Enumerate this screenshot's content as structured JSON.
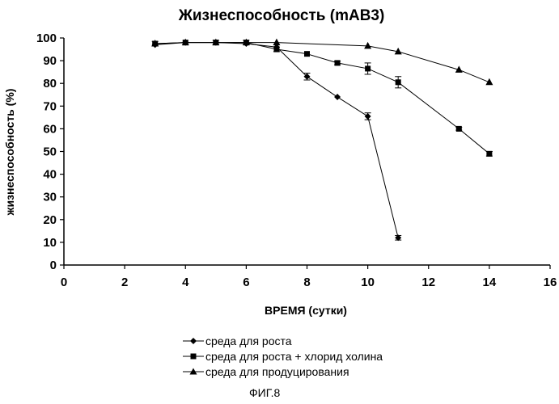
{
  "chart_data": {
    "type": "line",
    "title": "Жизнеспособность (mAB3)",
    "xlabel": "ВРЕМЯ (сутки)",
    "ylabel": "жизнеспособность (%)",
    "xlim": [
      0,
      16
    ],
    "ylim": [
      0,
      100
    ],
    "xticks": [
      "0",
      "2",
      "4",
      "6",
      "8",
      "10",
      "12",
      "14",
      "16"
    ],
    "yticks": [
      "0",
      "10",
      "20",
      "30",
      "40",
      "50",
      "60",
      "70",
      "80",
      "90",
      "100"
    ],
    "grid": false,
    "legend_position": "bottom",
    "series": [
      {
        "name": "среда для роста",
        "marker": "diamond",
        "points": [
          {
            "x": 3,
            "y": 97
          },
          {
            "x": 4,
            "y": 98
          },
          {
            "x": 5,
            "y": 98
          },
          {
            "x": 6,
            "y": 97.5
          },
          {
            "x": 7,
            "y": 96
          },
          {
            "x": 8,
            "y": 83
          },
          {
            "x": 9,
            "y": 74
          },
          {
            "x": 10,
            "y": 65.5
          },
          {
            "x": 11,
            "y": 12
          }
        ],
        "errors": [
          0,
          0,
          0,
          0,
          0,
          1.5,
          0,
          1.5,
          1
        ]
      },
      {
        "name": "среда для роста + хлорид холина",
        "marker": "square",
        "points": [
          {
            "x": 3,
            "y": 97.5
          },
          {
            "x": 4,
            "y": 98
          },
          {
            "x": 5,
            "y": 98
          },
          {
            "x": 6,
            "y": 98
          },
          {
            "x": 7,
            "y": 95
          },
          {
            "x": 8,
            "y": 93
          },
          {
            "x": 9,
            "y": 89
          },
          {
            "x": 10,
            "y": 86.5
          },
          {
            "x": 11,
            "y": 80.5
          },
          {
            "x": 13,
            "y": 60
          },
          {
            "x": 14,
            "y": 49
          }
        ],
        "errors": [
          1,
          0,
          1,
          1,
          1,
          0,
          0.8,
          2.5,
          2.5,
          0.6,
          1
        ]
      },
      {
        "name": "среда для продуцирования",
        "marker": "triangle",
        "points": [
          {
            "x": 3,
            "y": 97.5
          },
          {
            "x": 4,
            "y": 98
          },
          {
            "x": 5,
            "y": 98
          },
          {
            "x": 6,
            "y": 98
          },
          {
            "x": 7,
            "y": 98
          },
          {
            "x": 10,
            "y": 96.5
          },
          {
            "x": 11,
            "y": 94
          },
          {
            "x": 13,
            "y": 86
          },
          {
            "x": 14,
            "y": 80.5
          }
        ],
        "errors": [
          0,
          0,
          0,
          0,
          0,
          0,
          0,
          0,
          0
        ]
      }
    ]
  },
  "figure_label": "ФИГ.8"
}
